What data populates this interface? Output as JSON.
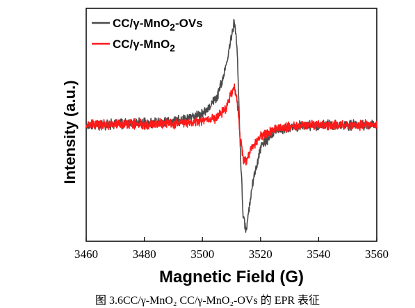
{
  "chart_data": {
    "type": "line",
    "title": "",
    "xlabel": "Magnetic Field (G)",
    "ylabel": "Intensity (a.u.)",
    "xlim": [
      3460,
      3560
    ],
    "xticks": [
      3460,
      3480,
      3500,
      3520,
      3540,
      3560
    ],
    "ylim": [
      -1.0,
      1.0
    ],
    "y_ticks_shown": false,
    "grid": false,
    "legend_position": "top-left",
    "series": [
      {
        "name": "CC/γ-MnO2-OVs",
        "name_base": "CC/γ-MnO",
        "name_sub": "2",
        "name_suffix": "-OVs",
        "color": "#4a4a4a",
        "x": [
          3460,
          3490,
          3500,
          3505,
          3508,
          3510,
          3511,
          3512,
          3513,
          3514,
          3515,
          3517,
          3520,
          3525,
          3535,
          3560
        ],
        "values": [
          0.0,
          0.03,
          0.1,
          0.25,
          0.5,
          0.8,
          0.95,
          0.65,
          -0.2,
          -0.8,
          -0.95,
          -0.55,
          -0.2,
          -0.05,
          0.0,
          0.0
        ]
      },
      {
        "name": "CC/γ-MnO2",
        "name_base": "CC/γ-MnO",
        "name_sub": "2",
        "name_suffix": "",
        "color": "#ff1a1a",
        "x": [
          3460,
          3495,
          3505,
          3508,
          3510,
          3511,
          3512,
          3513,
          3514,
          3515,
          3517,
          3520,
          3525,
          3535,
          3560
        ],
        "values": [
          0.0,
          0.02,
          0.07,
          0.15,
          0.3,
          0.35,
          0.2,
          -0.1,
          -0.3,
          -0.33,
          -0.2,
          -0.1,
          -0.03,
          0.0,
          0.0
        ]
      }
    ]
  },
  "caption": "图 3.6CC/γ-MnO₂ CC/γ-MnO₂-OVs 的 EPR 表征"
}
